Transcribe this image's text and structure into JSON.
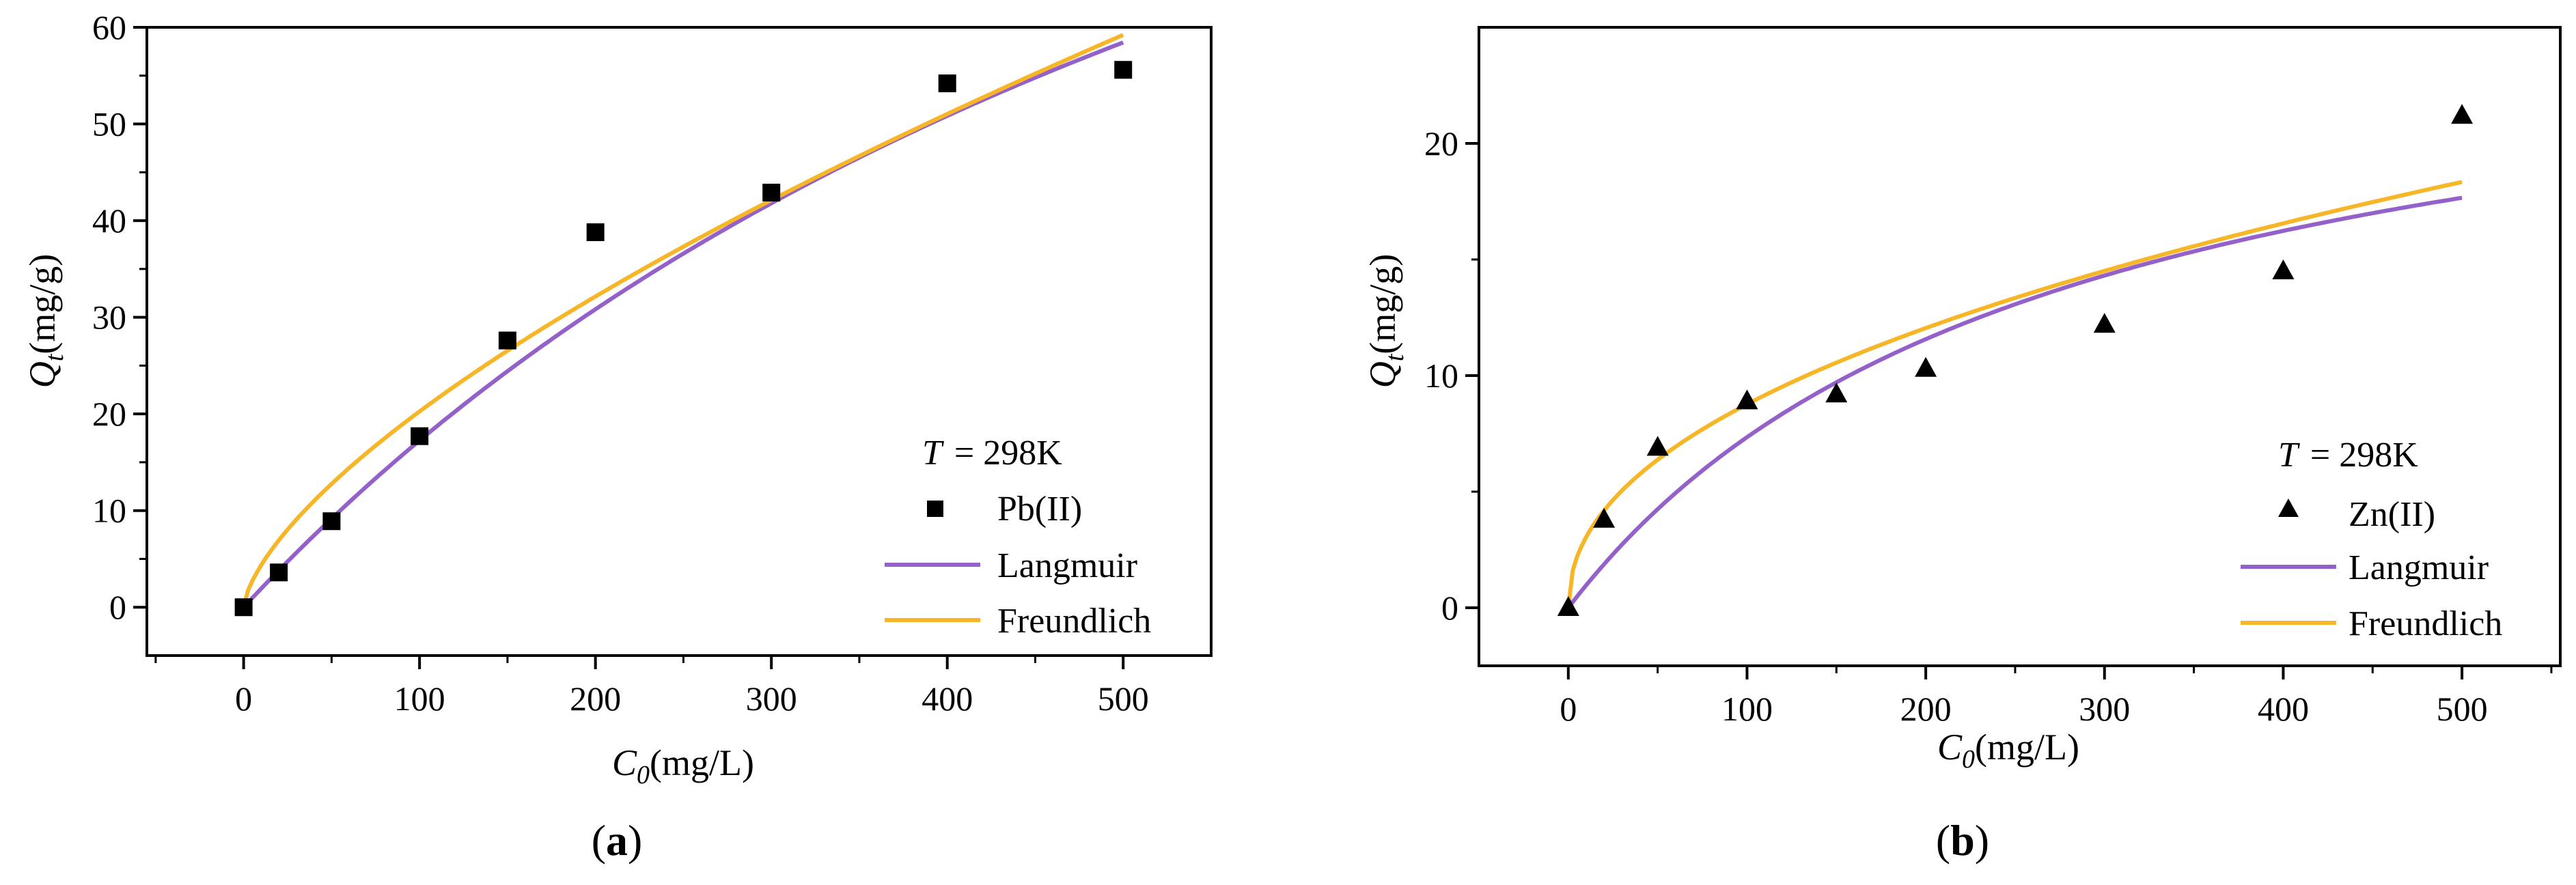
{
  "chart_data": [
    {
      "type": "scatter",
      "panel_label": "a",
      "xlabel_var": "C",
      "xlabel_sub": "0",
      "xlabel_unit": "(mg/L)",
      "ylabel_var": "Q",
      "ylabel_sub": "t",
      "ylabel_unit": "(mg/g)",
      "xlim": [
        -55,
        550
      ],
      "ylim": [
        -5,
        60
      ],
      "xticks": [
        0,
        100,
        200,
        300,
        400,
        500
      ],
      "yticks": [
        0,
        10,
        20,
        30,
        40,
        50,
        60
      ],
      "temperature_var": "T",
      "temperature_value": "= 298K",
      "marker": "square",
      "series": [
        {
          "name": "Pb(II)",
          "kind": "points",
          "x": [
            0,
            20,
            50,
            100,
            150,
            200,
            300,
            400,
            500
          ],
          "y": [
            0,
            3.6,
            8.9,
            17.7,
            27.6,
            38.8,
            42.9,
            54.2,
            55.6
          ]
        },
        {
          "name": "Langmuir",
          "kind": "curve",
          "color": "#9460c9",
          "model": "langmuir",
          "qmax": 145,
          "kl": 0.00135
        },
        {
          "name": "Freundlich",
          "kind": "curve",
          "color": "#f7b528",
          "model": "freundlich",
          "kf": 0.94,
          "n": 1.5
        }
      ]
    },
    {
      "type": "scatter",
      "panel_label": "b",
      "xlabel_var": "C",
      "xlabel_sub": "0",
      "xlabel_unit": "(mg/L)",
      "ylabel_var": "Q",
      "ylabel_sub": "t",
      "ylabel_unit": "(mg/g)",
      "xlim": [
        -50,
        555
      ],
      "ylim": [
        -2.5,
        25
      ],
      "xticks": [
        0,
        100,
        200,
        300,
        400,
        500
      ],
      "yticks": [
        0,
        10,
        20
      ],
      "temperature_var": "T",
      "temperature_value": "= 298K",
      "marker": "triangle",
      "series": [
        {
          "name": "Zn(II)",
          "kind": "points",
          "x": [
            0,
            20,
            50,
            100,
            150,
            200,
            300,
            400,
            500
          ],
          "y": [
            0,
            3.8,
            6.9,
            8.9,
            9.2,
            10.3,
            12.2,
            14.5,
            21.2
          ]
        },
        {
          "name": "Langmuir",
          "kind": "curve",
          "color": "#9460c9",
          "model": "langmuir",
          "qmax": 27.2,
          "kl": 0.0037
        },
        {
          "name": "Freundlich",
          "kind": "curve",
          "color": "#f7b528",
          "model": "freundlich",
          "kf": 1.06,
          "n": 2.18
        }
      ]
    }
  ]
}
